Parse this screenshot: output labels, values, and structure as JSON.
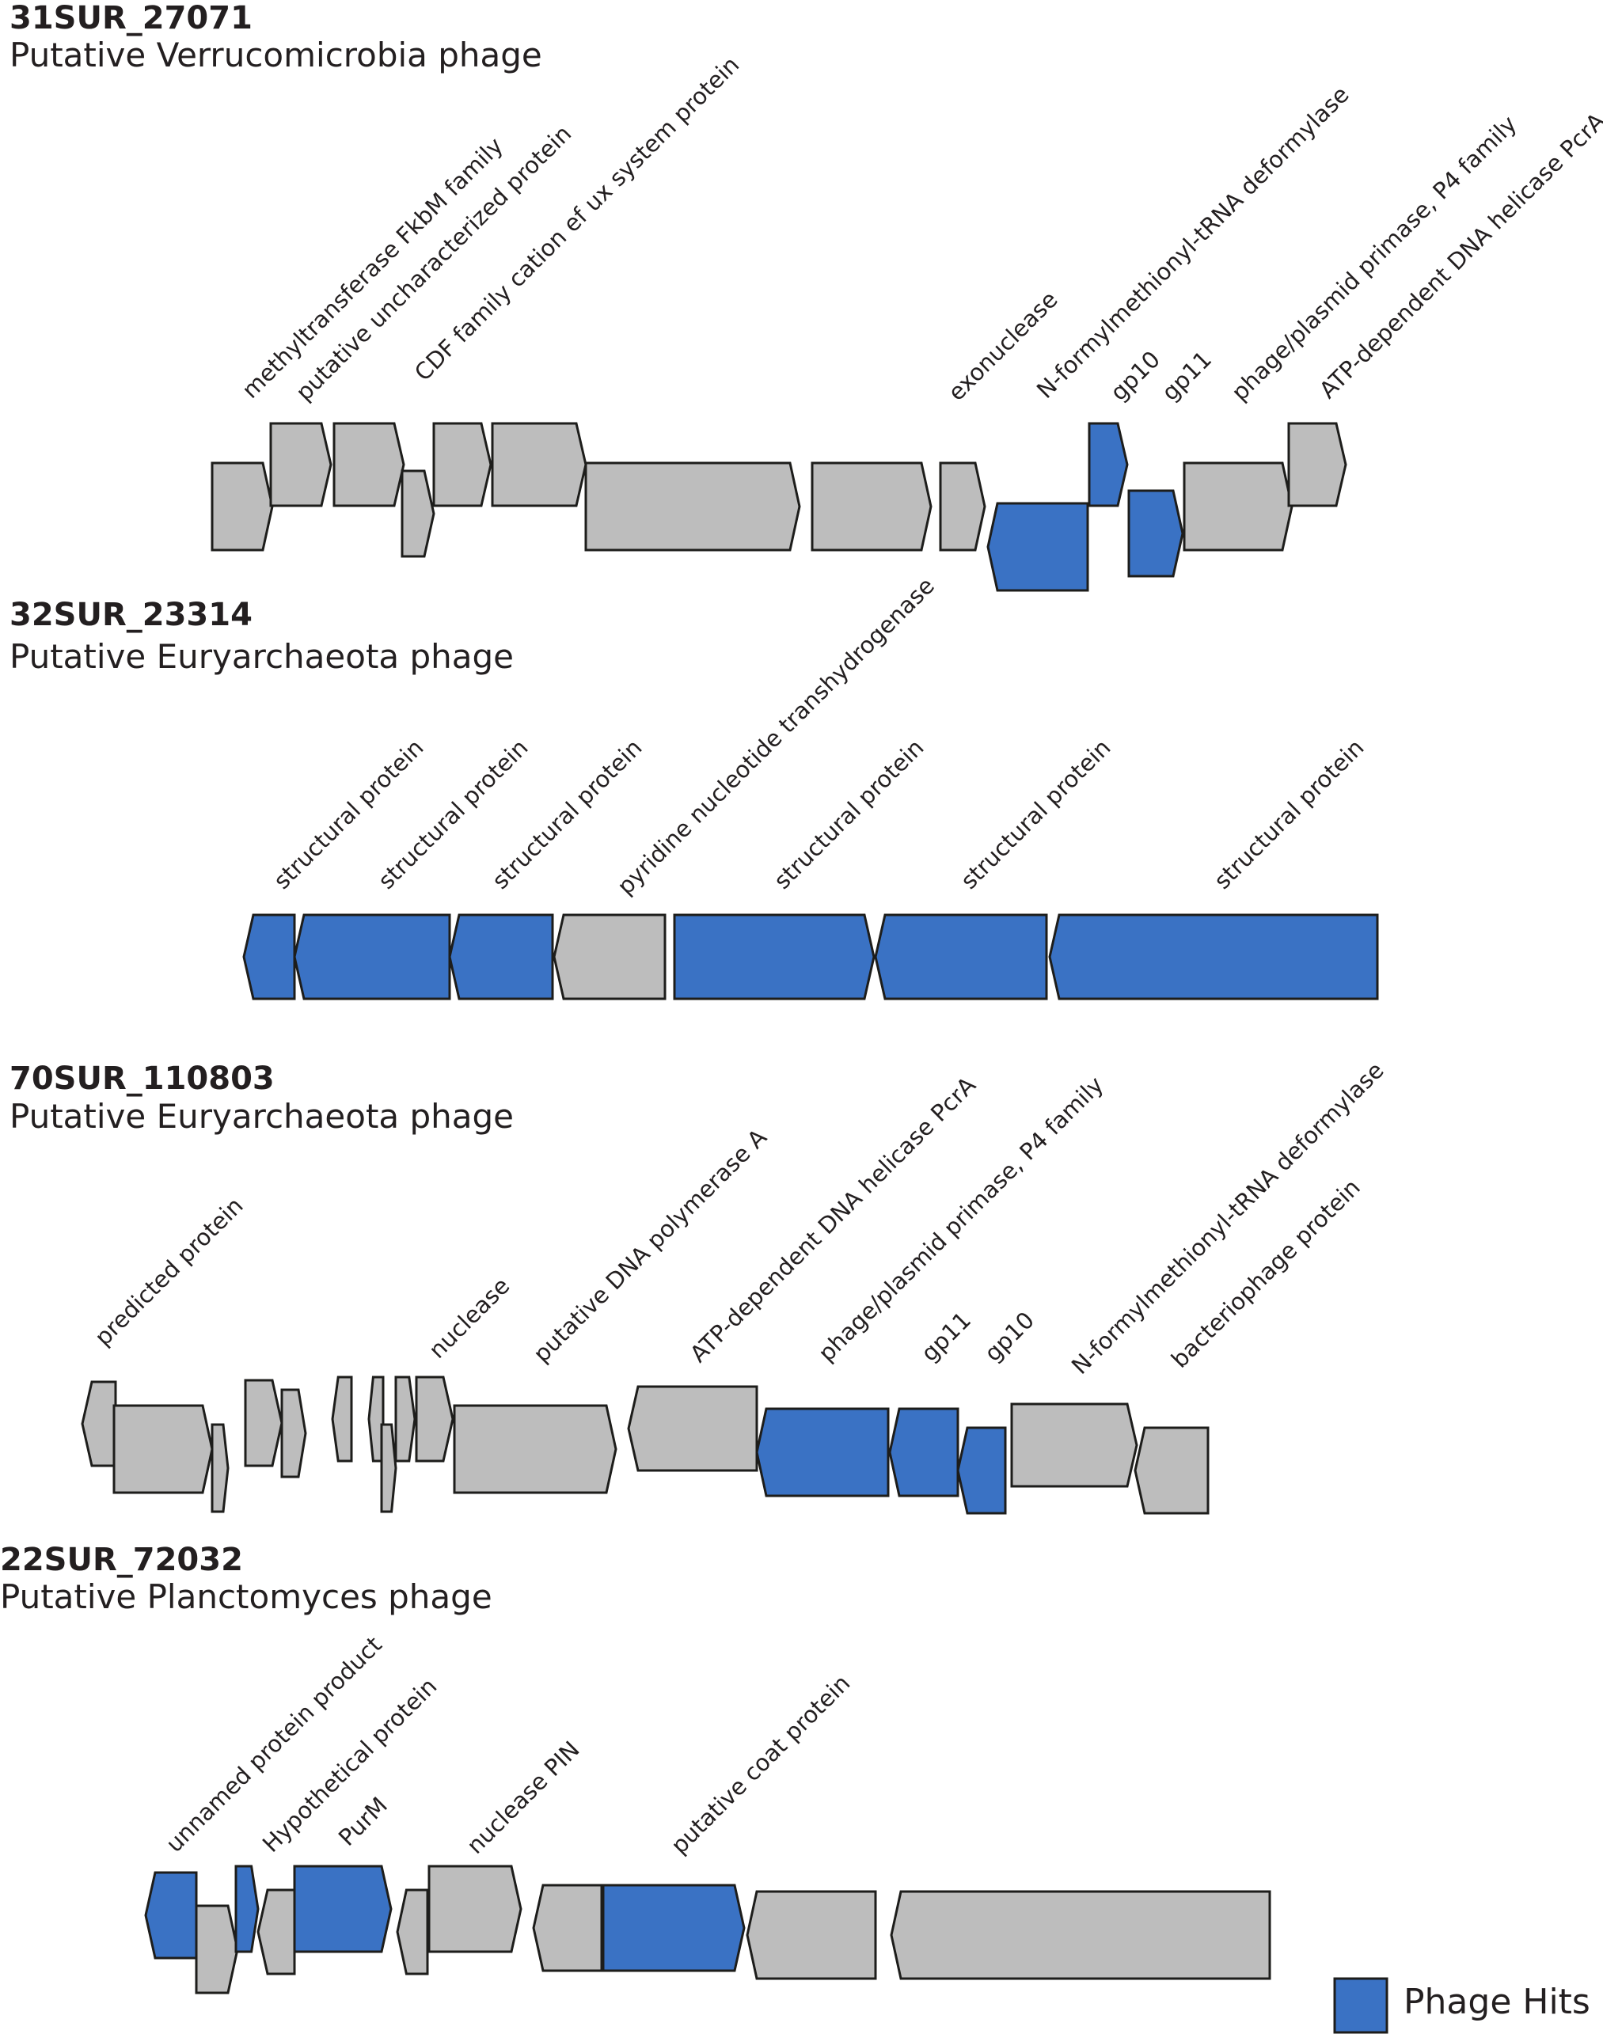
{
  "colors": {
    "phage_hit": "#3a72c4",
    "other": "#bdbdbd",
    "outline": "#1d1d1b",
    "text": "#231f20"
  },
  "legend": {
    "label": "Phage Hits"
  },
  "contigs": [
    {
      "id": "31SUR_27071",
      "subtitle": "Putative Verrucomicrobia phage",
      "labels": [
        "methyltransferase FkbM family",
        "putative uncharacterized protein",
        "CDF family cation ef   ux system protein",
        "exonuclease",
        "N-formylmethionyl-tRNA deformylase",
        "gp10",
        "gp11",
        "phage/plasmid primase, P4 family",
        "ATP-dependent DNA helicase PcrA"
      ]
    },
    {
      "id": "32SUR_23314",
      "subtitle": "Putative Euryarchaeota phage",
      "labels": [
        "structural protein",
        "structural protein",
        "structural protein",
        "pyridine nucleotide transhydrogenase",
        "structural protein",
        "structural protein",
        "structural protein"
      ]
    },
    {
      "id": "70SUR_110803",
      "subtitle": "Putative Euryarchaeota phage",
      "labels": [
        "predicted protein",
        "nuclease",
        "putative DNA polymerase A",
        "ATP-dependent DNA helicase PcrA",
        "phage/plasmid primase, P4 family",
        "gp11",
        "gp10",
        "N-formylmethionyl-tRNA deformylase",
        "bacteriophage protein"
      ]
    },
    {
      "id": "22SUR_72032",
      "subtitle": "Putative Planctomyces phage",
      "labels": [
        "unnamed protein product",
        "Hypothetical protein",
        "PurM",
        "nuclease PIN",
        "putative coat protein"
      ]
    }
  ]
}
